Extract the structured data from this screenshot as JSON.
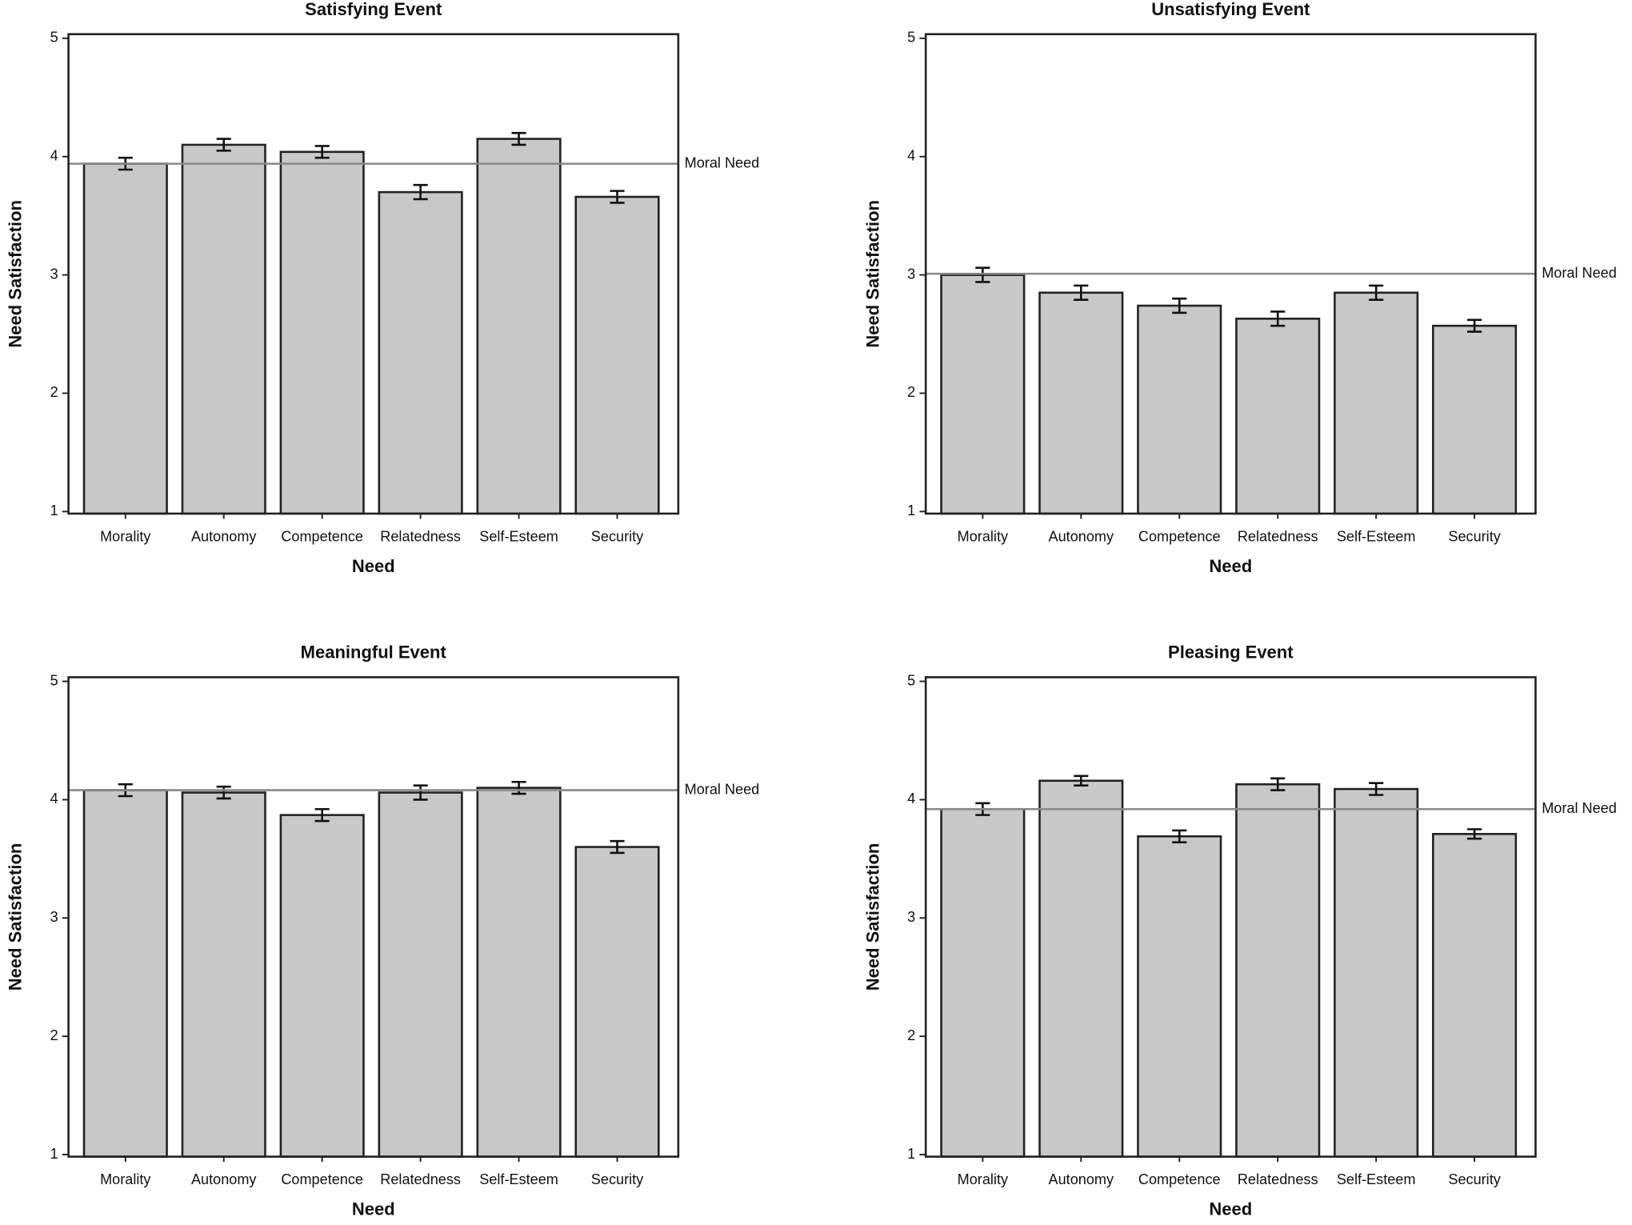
{
  "chart_data": [
    {
      "type": "bar",
      "title": "Satisfying Event",
      "xlabel": "Need",
      "ylabel": "Need Satisfaction",
      "categories": [
        "Morality",
        "Autonomy",
        "Competence",
        "Relatedness",
        "Self-Esteem",
        "Security"
      ],
      "values": [
        3.94,
        4.1,
        4.04,
        3.7,
        4.15,
        3.66
      ],
      "errors": [
        0.05,
        0.05,
        0.05,
        0.06,
        0.05,
        0.05
      ],
      "ylim": [
        1,
        5
      ],
      "yticks": [
        1,
        2,
        3,
        4,
        5
      ],
      "color": "#c8c8c8",
      "reference": {
        "value": 3.94,
        "label": "Moral Need"
      }
    },
    {
      "type": "bar",
      "title": "Unsatisfying Event",
      "xlabel": "Need",
      "ylabel": "Need Satisfaction",
      "categories": [
        "Morality",
        "Autonomy",
        "Competence",
        "Relatedness",
        "Self-Esteem",
        "Security"
      ],
      "values": [
        3.0,
        2.85,
        2.74,
        2.63,
        2.85,
        2.57
      ],
      "errors": [
        0.06,
        0.06,
        0.06,
        0.06,
        0.06,
        0.05
      ],
      "ylim": [
        1,
        5
      ],
      "yticks": [
        1,
        2,
        3,
        4,
        5
      ],
      "color": "#c8c8c8",
      "reference": {
        "value": 3.01,
        "label": "Moral Need"
      }
    },
    {
      "type": "bar",
      "title": "Meaningful Event",
      "xlabel": "Need",
      "ylabel": "Need Satisfaction",
      "categories": [
        "Morality",
        "Autonomy",
        "Competence",
        "Relatedness",
        "Self-Esteem",
        "Security"
      ],
      "values": [
        4.08,
        4.06,
        3.87,
        4.06,
        4.1,
        3.6
      ],
      "errors": [
        0.05,
        0.05,
        0.05,
        0.06,
        0.05,
        0.05
      ],
      "ylim": [
        1,
        5
      ],
      "yticks": [
        1,
        2,
        3,
        4,
        5
      ],
      "color": "#c8c8c8",
      "reference": {
        "value": 4.08,
        "label": "Moral Need"
      }
    },
    {
      "type": "bar",
      "title": "Pleasing Event",
      "xlabel": "Need",
      "ylabel": "Need Satisfaction",
      "categories": [
        "Morality",
        "Autonomy",
        "Competence",
        "Relatedness",
        "Self-Esteem",
        "Security"
      ],
      "values": [
        3.92,
        4.16,
        3.69,
        4.13,
        4.09,
        3.71
      ],
      "errors": [
        0.05,
        0.04,
        0.05,
        0.05,
        0.05,
        0.04
      ],
      "ylim": [
        1,
        5
      ],
      "yticks": [
        1,
        2,
        3,
        4,
        5
      ],
      "color": "#c8c8c8",
      "reference": {
        "value": 3.92,
        "label": "Moral Need"
      }
    }
  ]
}
